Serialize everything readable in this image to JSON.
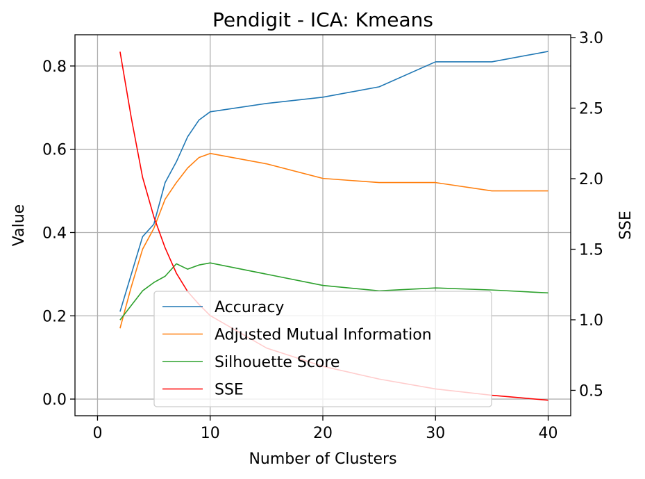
{
  "chart_data": {
    "type": "line",
    "title": "Pendigit - ICA: Kmeans",
    "xlabel": "Number of Clusters",
    "ylabel": "Value",
    "y2label": "SSE",
    "xlim": [
      -2,
      42
    ],
    "ylim": [
      -0.04,
      0.875
    ],
    "y2lim": [
      0.32,
      3.02
    ],
    "xticks": [
      0,
      10,
      20,
      30,
      40
    ],
    "yticks": [
      0.0,
      0.2,
      0.4,
      0.6,
      0.8
    ],
    "y2ticks": [
      0.5,
      1.0,
      1.5,
      2.0,
      2.5,
      3.0
    ],
    "xtick_labels": [
      "0",
      "10",
      "20",
      "30",
      "40"
    ],
    "ytick_labels": [
      "0.0",
      "0.2",
      "0.4",
      "0.6",
      "0.8"
    ],
    "y2tick_labels": [
      "0.5",
      "1.0",
      "1.5",
      "2.0",
      "2.5",
      "3.0"
    ],
    "grid": true,
    "legend_position": "lower-center",
    "x": [
      2,
      3,
      4,
      5,
      6,
      7,
      8,
      9,
      10,
      15,
      20,
      25,
      30,
      35,
      40
    ],
    "series": [
      {
        "name": "Accuracy",
        "axis": "left",
        "color": "#1f77b4",
        "values": [
          0.21,
          0.3,
          0.39,
          0.42,
          0.52,
          0.57,
          0.63,
          0.67,
          0.69,
          0.71,
          0.725,
          0.75,
          0.81,
          0.81,
          0.835
        ]
      },
      {
        "name": "Adjusted Mutual Information",
        "axis": "left",
        "color": "#ff7f0e",
        "values": [
          0.17,
          0.27,
          0.36,
          0.41,
          0.48,
          0.52,
          0.555,
          0.58,
          0.59,
          0.565,
          0.53,
          0.52,
          0.52,
          0.5,
          0.5
        ]
      },
      {
        "name": "Silhouette Score",
        "axis": "left",
        "color": "#2ca02c",
        "values": [
          0.19,
          0.225,
          0.26,
          0.28,
          0.295,
          0.325,
          0.312,
          0.322,
          0.327,
          0.3,
          0.273,
          0.26,
          0.267,
          0.262,
          0.255
        ]
      },
      {
        "name": "SSE",
        "axis": "right",
        "color": "#ff0000",
        "values": [
          2.9,
          2.43,
          2.01,
          1.73,
          1.51,
          1.33,
          1.2,
          1.11,
          1.03,
          0.8,
          0.67,
          0.58,
          0.51,
          0.465,
          0.43
        ]
      }
    ]
  }
}
